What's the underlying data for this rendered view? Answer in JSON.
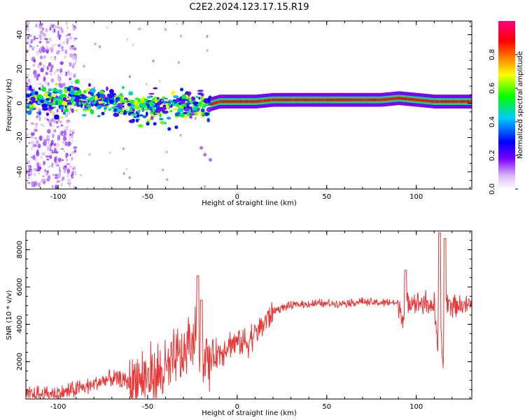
{
  "title": "C2E2.2024.123.17.15.R19",
  "chart_data": [
    {
      "type": "heatmap",
      "xlabel": "Height of straight line (km)",
      "ylabel": "Frequency (Hz)",
      "xlim": [
        -118,
        131
      ],
      "ylim": [
        -50,
        48
      ],
      "x_ticks": [
        -100,
        -50,
        0,
        50,
        100
      ],
      "y_ticks": [
        -40,
        -20,
        0,
        20,
        40
      ],
      "colorbar": {
        "label": "Normalized spectral amplitude",
        "range": [
          0,
          1
        ],
        "ticks": [
          0.0,
          0.2,
          0.4,
          0.6,
          0.8
        ],
        "colors": [
          "#ffffff",
          "#d8b8f8",
          "#7a00ff",
          "#0000ff",
          "#00c8ff",
          "#00ff00",
          "#ffff00",
          "#ff8000",
          "#ff0000",
          "#ff0080"
        ]
      },
      "ridge": {
        "x": [
          -118,
          -100,
          -90,
          -80,
          -70,
          -60,
          -50,
          -40,
          -30,
          -20,
          -10,
          0,
          10,
          20,
          40,
          60,
          80,
          90,
          100,
          110,
          120,
          131
        ],
        "y": [
          1,
          2,
          3,
          2,
          0,
          -3,
          -1,
          -2,
          -1,
          -2,
          1,
          1,
          1,
          2,
          2,
          2,
          2,
          3,
          2,
          1,
          1,
          1
        ]
      }
    },
    {
      "type": "line",
      "xlabel": "Height of straight line (km)",
      "ylabel": "SNR (10 * v/v)",
      "xlim": [
        -118,
        131
      ],
      "ylim": [
        0,
        9000
      ],
      "x_ticks": [
        -100,
        -50,
        0,
        50,
        100
      ],
      "y_ticks": [
        2000,
        4000,
        6000,
        8000
      ],
      "color": "#ee3333",
      "series": [
        {
          "x": [
            -118,
            -110,
            -100,
            -90,
            -80,
            -70,
            -60,
            -50,
            -45,
            -40,
            -35,
            -30,
            -25,
            -22,
            -20,
            -15,
            -10,
            -5,
            0,
            5,
            10,
            15,
            20,
            25,
            30,
            40,
            50,
            60,
            70,
            80,
            85,
            90,
            93,
            95,
            97,
            100,
            105,
            110,
            112,
            113,
            114,
            115,
            116,
            118,
            120,
            125,
            131
          ],
          "y": [
            200,
            250,
            300,
            500,
            800,
            1100,
            900,
            1200,
            1300,
            1500,
            2000,
            2300,
            3000,
            4200,
            2000,
            2200,
            2500,
            2900,
            3100,
            3000,
            3500,
            4100,
            4700,
            4900,
            5000,
            5100,
            5100,
            5150,
            5200,
            5150,
            5200,
            5100,
            4300,
            5400,
            5300,
            5200,
            5150,
            5000,
            2500,
            8800,
            3000,
            1800,
            5300,
            5200,
            5100,
            5050,
            5000
          ]
        }
      ],
      "spikes": [
        {
          "x": -22,
          "y": 6600
        },
        {
          "x": -20,
          "y": 5300
        },
        {
          "x": 94,
          "y": 6900
        },
        {
          "x": 113,
          "y": 8900
        },
        {
          "x": 116,
          "y": 8600
        }
      ]
    }
  ]
}
